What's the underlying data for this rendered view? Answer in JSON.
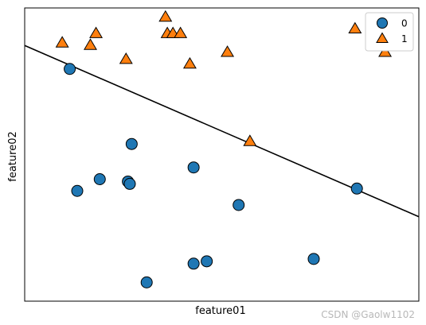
{
  "chart_data": {
    "type": "scatter",
    "xlabel": "feature01",
    "ylabel": "feature02",
    "xticks": "none",
    "yticks": "none",
    "grid": false,
    "legend_position": "top-right",
    "xlim": [
      -0.2,
      10.3
    ],
    "ylim": [
      -0.2,
      6.05
    ],
    "series": [
      {
        "name": "0",
        "marker": "circle",
        "color": "#1f77b4",
        "points": [
          [
            1.0,
            4.75
          ],
          [
            2.65,
            3.15
          ],
          [
            1.8,
            2.4
          ],
          [
            2.55,
            2.35
          ],
          [
            2.6,
            2.3
          ],
          [
            1.2,
            2.15
          ],
          [
            4.3,
            2.65
          ],
          [
            5.5,
            1.85
          ],
          [
            8.65,
            2.2
          ],
          [
            3.05,
            0.2
          ],
          [
            4.3,
            0.6
          ],
          [
            4.65,
            0.65
          ],
          [
            7.5,
            0.7
          ]
        ]
      },
      {
        "name": "1",
        "marker": "triangle",
        "color": "#ff7f0e",
        "points": [
          [
            0.8,
            5.3
          ],
          [
            1.55,
            5.25
          ],
          [
            1.7,
            5.5
          ],
          [
            2.5,
            4.95
          ],
          [
            3.55,
            5.85
          ],
          [
            3.6,
            5.5
          ],
          [
            3.75,
            5.5
          ],
          [
            3.95,
            5.5
          ],
          [
            4.2,
            4.85
          ],
          [
            5.2,
            5.1
          ],
          [
            5.8,
            3.2
          ],
          [
            8.6,
            5.6
          ],
          [
            9.4,
            5.1
          ]
        ]
      }
    ],
    "decision_boundary": {
      "x": [
        -0.2,
        10.3
      ],
      "y": [
        5.25,
        1.6
      ]
    }
  },
  "watermark": "CSDN @Gaolw1102"
}
